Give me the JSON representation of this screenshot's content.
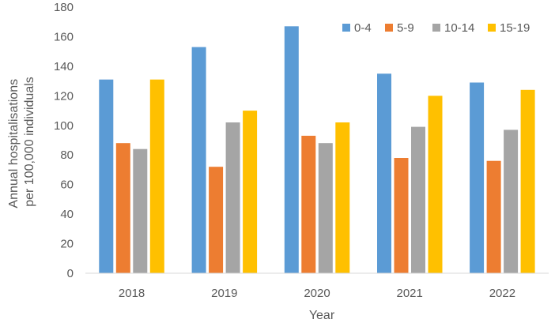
{
  "chart_data": {
    "type": "bar",
    "title": "",
    "xlabel": "Year",
    "ylabel_lines": [
      "Annual hospitalisations",
      "per 100,000 individuals"
    ],
    "categories": [
      "2018",
      "2019",
      "2020",
      "2021",
      "2022"
    ],
    "series": [
      {
        "name": "0-4",
        "color": "#5B9BD5",
        "values": [
          131,
          153,
          167,
          135,
          129
        ]
      },
      {
        "name": "5-9",
        "color": "#ED7D31",
        "values": [
          88,
          72,
          93,
          78,
          76
        ]
      },
      {
        "name": "10-14",
        "color": "#A5A5A5",
        "values": [
          84,
          102,
          88,
          99,
          97
        ]
      },
      {
        "name": "15-19",
        "color": "#FFC000",
        "values": [
          131,
          110,
          102,
          120,
          124
        ]
      }
    ],
    "ylim": [
      0,
      180
    ],
    "yticks": [
      0,
      20,
      40,
      60,
      80,
      100,
      120,
      140,
      160,
      180
    ],
    "grid": false,
    "legend_position": "top-right"
  }
}
